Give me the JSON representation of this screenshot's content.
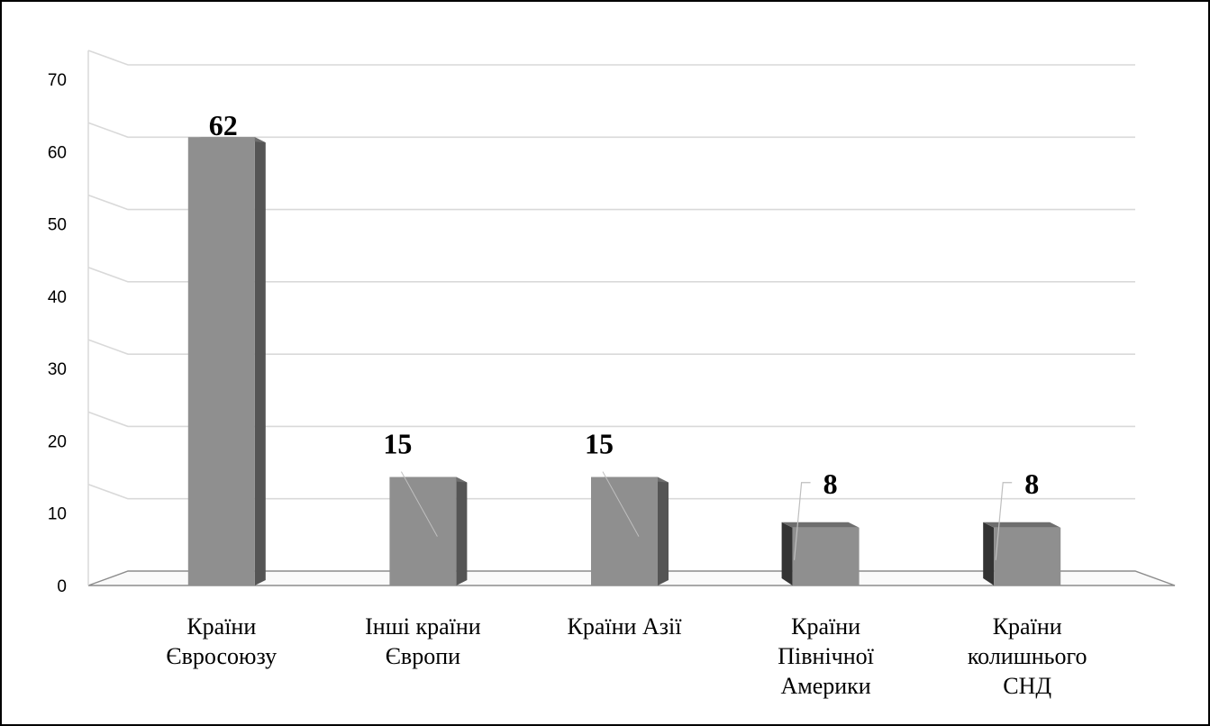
{
  "chart_data": {
    "type": "bar",
    "categories": [
      [
        "Країни",
        "Євросоюзу"
      ],
      [
        "Інші країни",
        "Європи"
      ],
      [
        "Країни Азії"
      ],
      [
        "Країни",
        "Північної",
        "Америки"
      ],
      [
        "Країни",
        "колишнього",
        "СНД"
      ]
    ],
    "values": [
      62,
      15,
      15,
      8,
      8
    ],
    "data_labels": [
      "62",
      "15",
      "15",
      "8",
      "8"
    ],
    "ylim": [
      0,
      70
    ],
    "yticks": [
      "0",
      "10",
      "20",
      "30",
      "40",
      "50",
      "60",
      "70"
    ],
    "title": "",
    "xlabel": "",
    "ylabel": "",
    "grid": true,
    "legend": "none",
    "style": "3d",
    "colors": {
      "bar_front": "#8f8f8f",
      "bar_side": "#555555",
      "bar_top": "#6e6e6e",
      "grid": "#d9d9d9",
      "axis": "#8c8c8c",
      "leader": "#bfbfbf",
      "frame": "#000000"
    }
  }
}
